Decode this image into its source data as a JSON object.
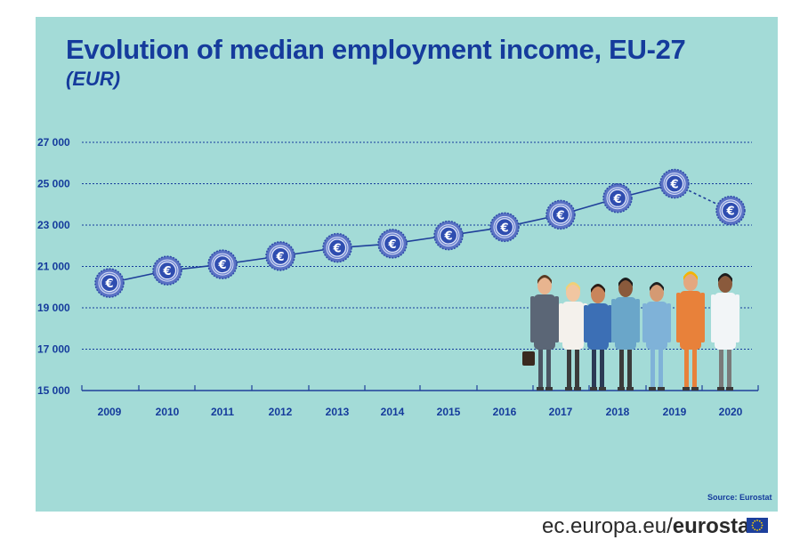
{
  "title": "Evolution of median employment income, EU-27",
  "subtitle": "(EUR)",
  "source": "Source: Eurostat",
  "footer": {
    "url_prefix": "ec.europa.eu/",
    "url_brand": "eurostat"
  },
  "colors": {
    "background": "#a3dbd7",
    "text": "#153b9c",
    "line": "#1f3f9a",
    "marker": "#5a72c4"
  },
  "chart_data": {
    "type": "line",
    "title": "Evolution of median employment income, EU-27",
    "subtitle": "(EUR)",
    "categories": [
      "2009",
      "2010",
      "2011",
      "2012",
      "2013",
      "2014",
      "2015",
      "2016",
      "2017",
      "2018",
      "2019",
      "2020"
    ],
    "values": [
      20200,
      20800,
      21100,
      21500,
      21900,
      22100,
      22500,
      22900,
      23500,
      24300,
      25000,
      23700
    ],
    "yticks": [
      15000,
      17000,
      19000,
      21000,
      23000,
      25000,
      27000
    ],
    "ytick_labels": [
      "15 000",
      "17 000",
      "19 000",
      "21 000",
      "23 000",
      "25 000",
      "27 000"
    ],
    "ylim": [
      15000,
      27000
    ],
    "grid": "horizontal dotted",
    "marker": "euro-coin-icon",
    "last_segment_style": "dotted",
    "source": "Source: Eurostat"
  }
}
